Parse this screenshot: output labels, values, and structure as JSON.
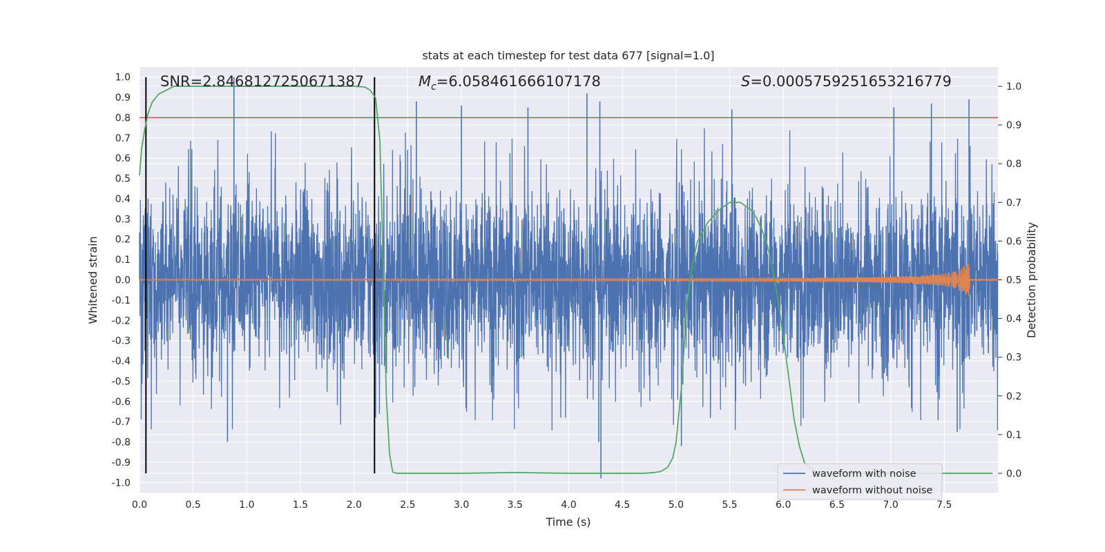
{
  "chart_data": {
    "type": "line",
    "title": "stats at each timestep for test data 677 [signal=1.0]",
    "xlabel": "Time (s)",
    "ylabel": "Whitened strain",
    "y2label": "Detection probability",
    "xlim": [
      0.0,
      8.0
    ],
    "ylim": [
      -1.05,
      1.05
    ],
    "y2lim": [
      -0.05,
      1.05
    ],
    "xticks": [
      "0.0",
      "0.5",
      "1.0",
      "1.5",
      "2.0",
      "2.5",
      "3.0",
      "3.5",
      "4.0",
      "4.5",
      "5.0",
      "5.5",
      "6.0",
      "6.5",
      "7.0",
      "7.5"
    ],
    "yticks": [
      "1.0",
      "0.9",
      "0.8",
      "0.7",
      "0.6",
      "0.5",
      "0.4",
      "0.3",
      "0.2",
      "0.1",
      "0.0",
      "-0.1",
      "-0.2",
      "-0.3",
      "-0.4",
      "-0.5",
      "-0.6",
      "-0.7",
      "-0.8",
      "-0.9",
      "-1.0"
    ],
    "y2ticks": [
      "1.0",
      "0.9",
      "0.8",
      "0.7",
      "0.6",
      "0.5",
      "0.4",
      "0.3",
      "0.2",
      "0.1",
      "0.0"
    ],
    "threshold": 0.8,
    "detection_markers": [
      0.06,
      2.19
    ],
    "annotations": {
      "snr": "SNR=2.8468127250671387",
      "mc_symbol": "M",
      "mc_sub": "c",
      "mc_value": "=6.058461666107178",
      "s_symbol": "S",
      "s_value": "=0.0005759251653216779"
    },
    "noise_spikes": [
      {
        "x": 0.88,
        "y": 1.0
      },
      {
        "x": 0.82,
        "y": -0.8
      },
      {
        "x": 4.3,
        "y": -0.98
      },
      {
        "x": 4.28,
        "y": -0.8
      },
      {
        "x": 2.58,
        "y": 0.88
      },
      {
        "x": 4.17,
        "y": 0.92
      },
      {
        "x": 4.29,
        "y": 0.88
      },
      {
        "x": 3.0,
        "y": 0.86
      },
      {
        "x": 7.38,
        "y": 0.87
      },
      {
        "x": 7.73,
        "y": 0.89
      },
      {
        "x": 7.03,
        "y": 0.85
      },
      {
        "x": 3.62,
        "y": 0.85
      },
      {
        "x": 5.52,
        "y": 0.84
      },
      {
        "x": 2.2,
        "y": -0.68
      },
      {
        "x": 5.05,
        "y": -0.82
      },
      {
        "x": 7.62,
        "y": -0.75
      }
    ],
    "series": [
      {
        "name": "waveform with noise",
        "color": "#4c72b0",
        "typical_amplitude": 0.4
      },
      {
        "name": "waveform without noise",
        "color": "#dd8452",
        "envelope": {
          "x": [
            0.0,
            3.0,
            5.0,
            6.0,
            6.5,
            7.0,
            7.3,
            7.5,
            7.6,
            7.68,
            7.72,
            7.73,
            7.74,
            8.0
          ],
          "amp": [
            0.004,
            0.005,
            0.006,
            0.008,
            0.01,
            0.015,
            0.022,
            0.032,
            0.045,
            0.065,
            0.085,
            0.09,
            0.003,
            0.003
          ]
        }
      },
      {
        "name": "detection probability",
        "color": "#55a868",
        "axis": "y2",
        "x": [
          0.0,
          0.02,
          0.05,
          0.08,
          0.12,
          0.18,
          0.25,
          0.32,
          0.4,
          0.6,
          1.0,
          1.5,
          2.0,
          2.1,
          2.15,
          2.2,
          2.24,
          2.27,
          2.3,
          2.33,
          2.36,
          2.4,
          2.5,
          3.0,
          3.5,
          4.0,
          4.5,
          4.7,
          4.8,
          4.86,
          4.92,
          4.97,
          5.0,
          5.05,
          5.1,
          5.13,
          5.16,
          5.2,
          5.3,
          5.4,
          5.5,
          5.55,
          5.6,
          5.65,
          5.7,
          5.75,
          5.8,
          5.85,
          5.9,
          5.95,
          6.0,
          6.05,
          6.1,
          6.15,
          6.2,
          6.3,
          6.5,
          7.0,
          7.5,
          7.95
        ],
        "y": [
          0.77,
          0.84,
          0.89,
          0.93,
          0.96,
          0.98,
          0.99,
          1.0,
          1.0,
          1.0,
          1.0,
          1.0,
          1.0,
          0.998,
          0.99,
          0.97,
          0.86,
          0.55,
          0.2,
          0.05,
          0.003,
          0.0,
          0.0,
          0.0,
          0.002,
          0.0,
          0.0,
          0.0,
          0.002,
          0.005,
          0.015,
          0.04,
          0.08,
          0.22,
          0.43,
          0.5,
          0.55,
          0.6,
          0.65,
          0.68,
          0.7,
          0.7,
          0.7,
          0.69,
          0.68,
          0.66,
          0.63,
          0.59,
          0.53,
          0.45,
          0.35,
          0.25,
          0.14,
          0.07,
          0.025,
          0.005,
          0.0,
          0.0,
          0.0,
          0.0
        ]
      }
    ],
    "legend": [
      "waveform with noise",
      "waveform without noise"
    ],
    "legend_position": "lower-right",
    "colors": {
      "background": "#eaeaf2",
      "grid": "#ffffff",
      "threshold": "#c44e52",
      "marker": "#000000"
    }
  }
}
